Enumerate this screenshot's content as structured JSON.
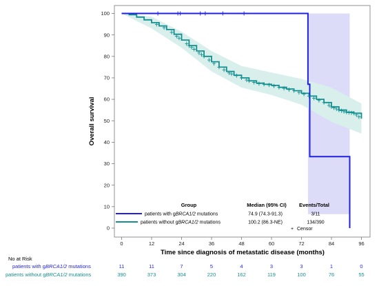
{
  "chart_data": {
    "type": "line",
    "chart_kind": "kaplan-meier",
    "xlabel": "Time since diagnosis of metastatic disease (months)",
    "ylabel": "Overall survival",
    "xlim": [
      0,
      96
    ],
    "ylim": [
      0,
      100
    ],
    "x_ticks": [
      0,
      12,
      24,
      36,
      48,
      60,
      72,
      84,
      96
    ],
    "y_ticks": [
      0,
      10,
      20,
      30,
      40,
      50,
      60,
      70,
      80,
      90,
      100
    ],
    "grid": false,
    "legend_position": "bottom-inside",
    "series": [
      {
        "label_text": "patients with gBRCA1/2 mutations",
        "color": "#1f1fe6",
        "band_color": "#dcdcf8",
        "median": "74.9 (74.3-91.3)",
        "events_total": "3/11",
        "x": [
          0,
          74.6,
          74.6,
          75.3,
          75.3,
          91.3,
          91.3
        ],
        "y": [
          100,
          100,
          67,
          67,
          33.3,
          33.3,
          0
        ],
        "ci_upper_x": [
          74.6,
          91.3
        ],
        "ci_upper_y": [
          100,
          100
        ],
        "ci_lower_x": [
          74.6,
          91.3
        ],
        "ci_lower_y": [
          6.5,
          6.5
        ],
        "censor_x": [
          14.5,
          22.5,
          23.5,
          31.5,
          33.5,
          40.5,
          49
        ],
        "censor_y": [
          100,
          100,
          100,
          100,
          100,
          100,
          100
        ]
      },
      {
        "label_text": "patients without gBRCA1/2 mutations",
        "color": "#138f8f",
        "band_color": "#d8efec",
        "median": "100.2 (86.3-NE)",
        "events_total": "134/390",
        "x": [
          0,
          3,
          6,
          9,
          12,
          15,
          18,
          21,
          24,
          27,
          30,
          33,
          36,
          39,
          42,
          45,
          48,
          51,
          54,
          57,
          60,
          63,
          66,
          69,
          72,
          75,
          78,
          81,
          84,
          87,
          90,
          93,
          96
        ],
        "y": [
          100,
          99.4,
          98.3,
          97,
          95.7,
          94.2,
          92.5,
          90.3,
          87.6,
          85,
          82.5,
          80,
          77.5,
          75,
          73,
          71.2,
          70,
          68.6,
          67.5,
          67,
          66.5,
          65.6,
          64.8,
          64,
          62.8,
          61.5,
          60,
          58.5,
          56.5,
          55,
          54,
          53.5,
          51
        ],
        "ci_x": [
          0,
          12,
          24,
          36,
          48,
          60,
          72,
          84,
          96
        ],
        "ci_upper": [
          100,
          98.5,
          91.5,
          82.5,
          75.5,
          72.5,
          69.5,
          65.5,
          58
        ],
        "ci_lower": [
          100,
          93,
          84,
          73,
          65.5,
          62,
          57.5,
          49.5,
          44
        ],
        "censor_x": [
          14,
          17,
          20,
          22,
          23,
          26,
          27,
          28,
          29,
          31,
          32,
          33,
          35,
          37,
          39,
          41,
          43,
          44,
          46,
          48,
          50,
          51,
          53,
          55,
          57,
          59,
          61,
          63,
          65,
          67,
          69,
          71,
          73,
          75,
          77,
          79,
          81,
          83,
          84,
          85,
          86,
          87,
          88,
          89,
          90,
          91,
          92,
          93,
          94,
          95
        ],
        "censor_y": [
          94.9,
          93.4,
          91.2,
          89.4,
          88.5,
          85.9,
          85,
          84.2,
          83.3,
          81.6,
          80.8,
          80,
          78.3,
          76.7,
          75,
          73.7,
          72.3,
          71.8,
          71,
          70,
          69,
          68.6,
          67.9,
          67.3,
          67,
          66.7,
          66.2,
          65.6,
          65.1,
          64.5,
          64,
          63.2,
          62.4,
          61.5,
          60.5,
          59.5,
          58.5,
          57.2,
          56.5,
          56,
          55.5,
          55,
          54.7,
          54.3,
          54,
          53.8,
          53.7,
          53.5,
          52.7,
          51.8
        ]
      }
    ]
  },
  "legend": {
    "group_header": "Group",
    "median_header": "Median (95% CI)",
    "events_header": "Events/Total",
    "rows": [
      {
        "prefix": "patients with g",
        "gene": "BRCA1/2",
        "suffix": " mutations"
      },
      {
        "prefix": "patients without g",
        "gene": "BRCA1/2",
        "suffix": " mutations"
      }
    ],
    "censor_symbol": "+",
    "censor_label": "Censor"
  },
  "risk_table": {
    "title": "No at Risk",
    "rows": [
      {
        "prefix": "patients with g",
        "gene": "BRCA1/2",
        "suffix": " mutations",
        "color": "#1f1fe6",
        "counts": [
          "11",
          "11",
          "7",
          "5",
          "4",
          "3",
          "3",
          "1",
          "0"
        ]
      },
      {
        "prefix": "patients without g",
        "gene": "BRCA1/2",
        "suffix": " mutations",
        "color": "#138f8f",
        "counts": [
          "390",
          "373",
          "304",
          "220",
          "162",
          "119",
          "100",
          "76",
          "55"
        ]
      }
    ]
  }
}
